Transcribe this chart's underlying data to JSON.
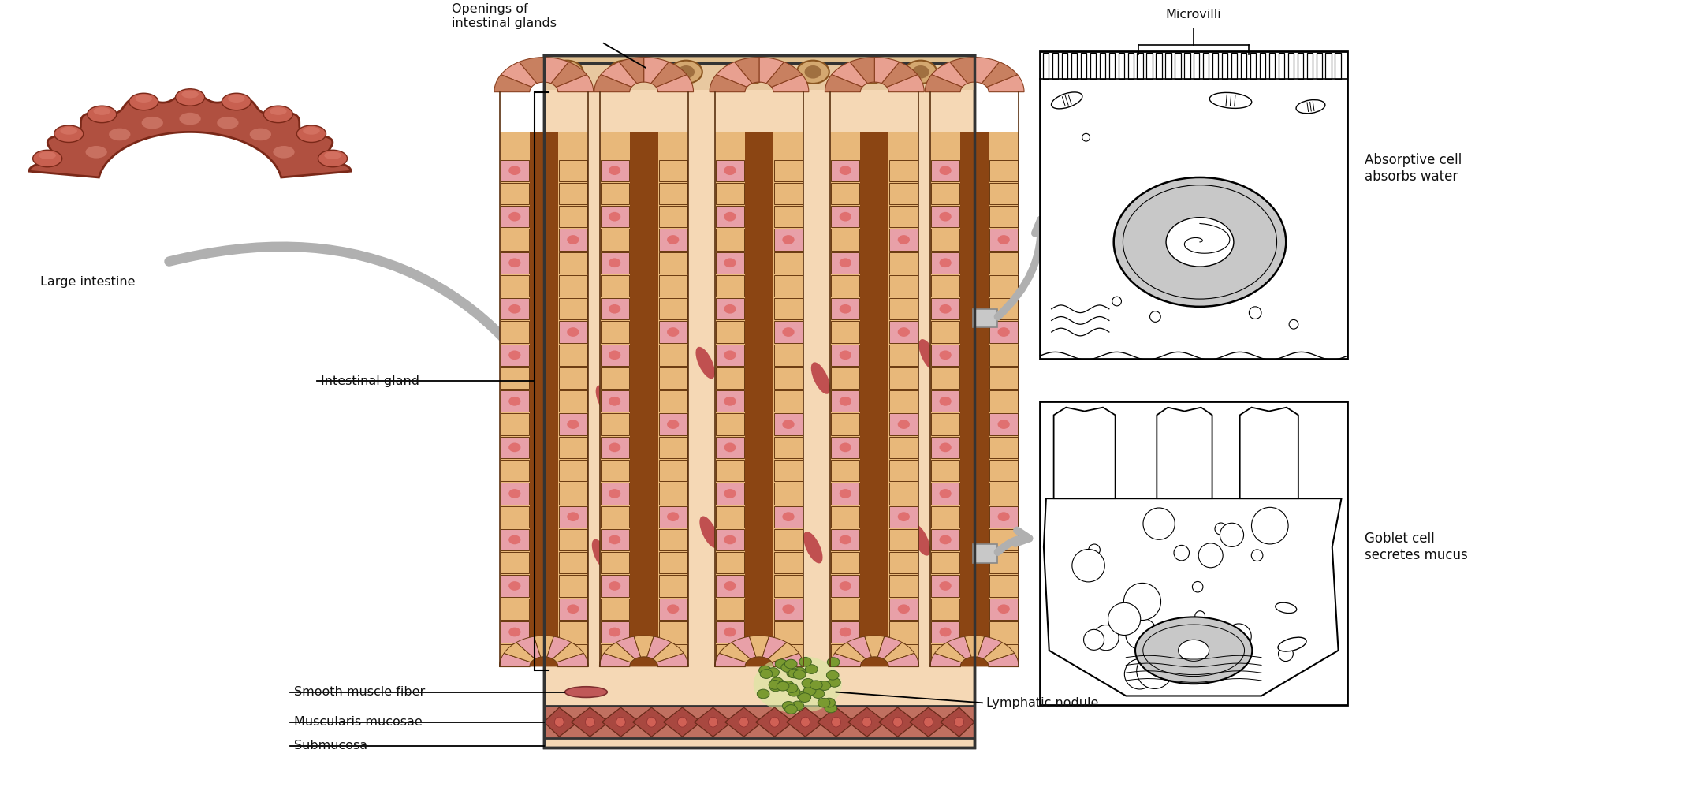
{
  "bg_color": "#ffffff",
  "tissue_bg": "#f5d8b5",
  "crypt_outer_color": "#e8b87a",
  "crypt_lumen_color": "#8b4513",
  "cell_pink": "#e8a0a8",
  "cell_tan": "#d4a060",
  "muscularis_color": "#c87060",
  "lymph_color": "#7a9a30",
  "arrow_color": "#b0b0b0",
  "label_color": "#111111",
  "colon_color": "#b05040",
  "colon_dark": "#7a2818",
  "colon_light": "#c87060",
  "labels": {
    "openings": "Openings of\nintestinal glands",
    "intestinal_gland": "Intestinal gland",
    "large_intestine": "Large intestine",
    "smooth_muscle": "Smooth muscle fiber",
    "muscularis": "Muscularis mucosae",
    "submucosa": "Submucosa",
    "lymphatic": "Lymphatic nodule",
    "microvilli": "Microvilli",
    "absorptive": "Absorptive cell\nabsorbs water",
    "goblet": "Goblet cell\nsecretes mucus"
  }
}
